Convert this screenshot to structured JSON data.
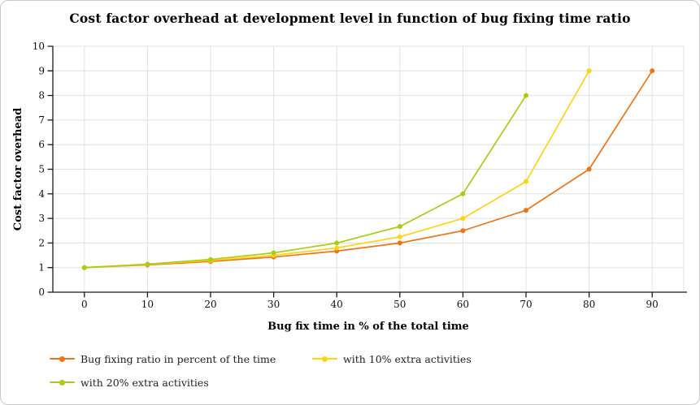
{
  "card": {
    "background": "#ffffff",
    "border_color": "#c9c9c9"
  },
  "chart_data": {
    "type": "line",
    "title": "Cost factor overhead at development level in function of bug fixing time ratio",
    "xlabel": "Bug fix time in % of the total time",
    "ylabel": "Cost factor overhead",
    "xlim": [
      -5,
      95
    ],
    "ylim": [
      0,
      10
    ],
    "x_ticks": [
      0,
      10,
      20,
      30,
      40,
      50,
      60,
      70,
      80,
      90
    ],
    "y_ticks": [
      0,
      1,
      2,
      3,
      4,
      5,
      6,
      7,
      8,
      9,
      10
    ],
    "grid": true,
    "legend_position": "bottom",
    "colors": {
      "grid": "#e0e0e0",
      "axis": "#1a1a1a",
      "tick_text": "#111111"
    },
    "series": [
      {
        "name": "Bug fixing ratio in percent of the time",
        "color": "#ee7518",
        "x": [
          0,
          10,
          20,
          30,
          40,
          50,
          60,
          70,
          80,
          90
        ],
        "y": [
          1,
          1.11,
          1.25,
          1.43,
          1.67,
          2,
          2.5,
          3.33,
          5,
          9
        ]
      },
      {
        "name": "with 10% extra activities",
        "color": "#ffd412",
        "x": [
          0,
          10,
          20,
          30,
          40,
          50,
          60,
          70,
          80
        ],
        "y": [
          1,
          1.13,
          1.29,
          1.5,
          1.8,
          2.25,
          3,
          4.5,
          9
        ]
      },
      {
        "name": "with 20% extra activities",
        "color": "#a8ce11",
        "x": [
          0,
          10,
          20,
          30,
          40,
          50,
          60,
          70
        ],
        "y": [
          1,
          1.14,
          1.33,
          1.6,
          2,
          2.67,
          4,
          8
        ]
      }
    ]
  }
}
